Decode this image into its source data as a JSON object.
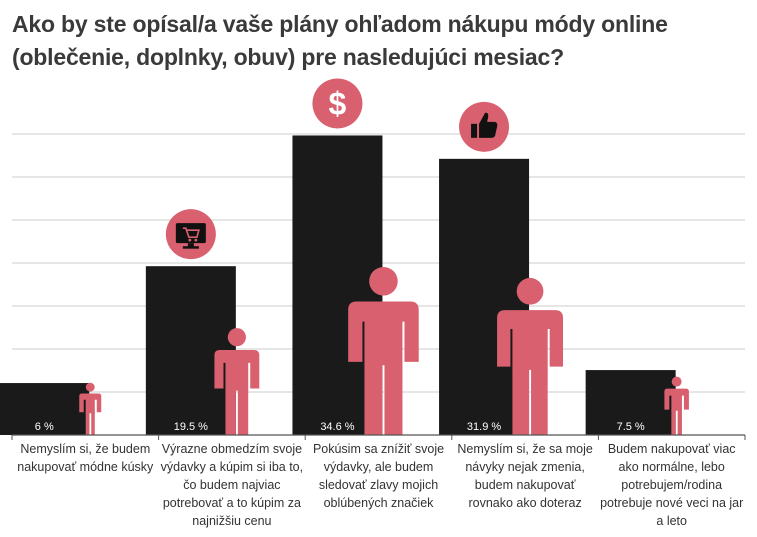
{
  "title": "Ako by ste opísal/a vaše plány ohľadom nákupu módy online (oblečenie, doplnky, obuv) pre nasledujúci mesiac?",
  "colors": {
    "bar": "#1a1a1a",
    "figure": "#d9606e",
    "grid": "#cccccc",
    "axis": "#555555"
  },
  "chart_data": {
    "type": "bar",
    "categories": [
      "Nemyslím si, že budem nakupovať módne kúsky",
      "Výrazne obmedzím svoje výdavky a kúpim si iba to, čo budem najviac potrebovať a to kúpim za najnižšiu cenu",
      "Pokúsim sa znížiť svoje výdavky, ale budem sledovať zlavy mojich oblúbených značiek",
      "Nemyslím si, že sa moje návyky nejak zmenia, budem nakupovať rovnako ako doteraz",
      "Budem nakupovať viac ako normálne, lebo potrebujem/rodina potrebuje nové veci na jar a leto"
    ],
    "values": [
      6,
      19.5,
      34.6,
      31.9,
      7.5
    ],
    "value_labels": [
      "6 %",
      "19.5 %",
      "34.6 %",
      "31.9 %",
      "7.5 %"
    ],
    "icons": [
      "",
      "shopping-screen-icon",
      "dollar-icon",
      "thumbs-up-icon",
      ""
    ],
    "ylim": [
      0,
      35
    ],
    "grid": true,
    "legend": "none"
  }
}
